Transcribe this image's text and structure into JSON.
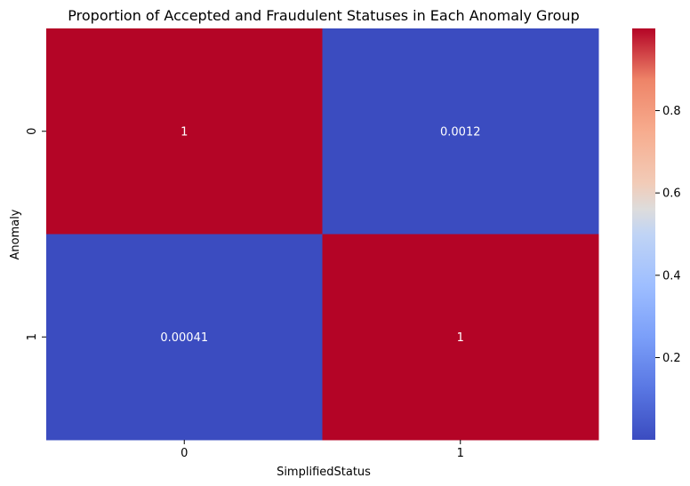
{
  "chart_data": {
    "type": "heatmap",
    "title": "Proportion of Accepted and Fraudulent Statuses in Each Anomaly Group",
    "xlabel": "SimplifiedStatus",
    "ylabel": "Anomaly",
    "x_categories": [
      "0",
      "1"
    ],
    "y_categories": [
      "0",
      "1"
    ],
    "values": [
      [
        0.9988,
        0.0012
      ],
      [
        0.00041,
        0.99959
      ]
    ],
    "annotations": [
      [
        "1",
        "0.0012"
      ],
      [
        "0.00041",
        "1"
      ]
    ],
    "colormap": "coolwarm",
    "colorbar": {
      "vmin": 0.00041,
      "vmax": 0.99959,
      "ticks": [
        0.2,
        0.4,
        0.6,
        0.8
      ],
      "tick_labels": [
        "0.2",
        "0.4",
        "0.6",
        "0.8"
      ]
    },
    "colors": {
      "low": "#3b4cc0",
      "high": "#b40426",
      "annotation_text": "#ffffff"
    }
  }
}
